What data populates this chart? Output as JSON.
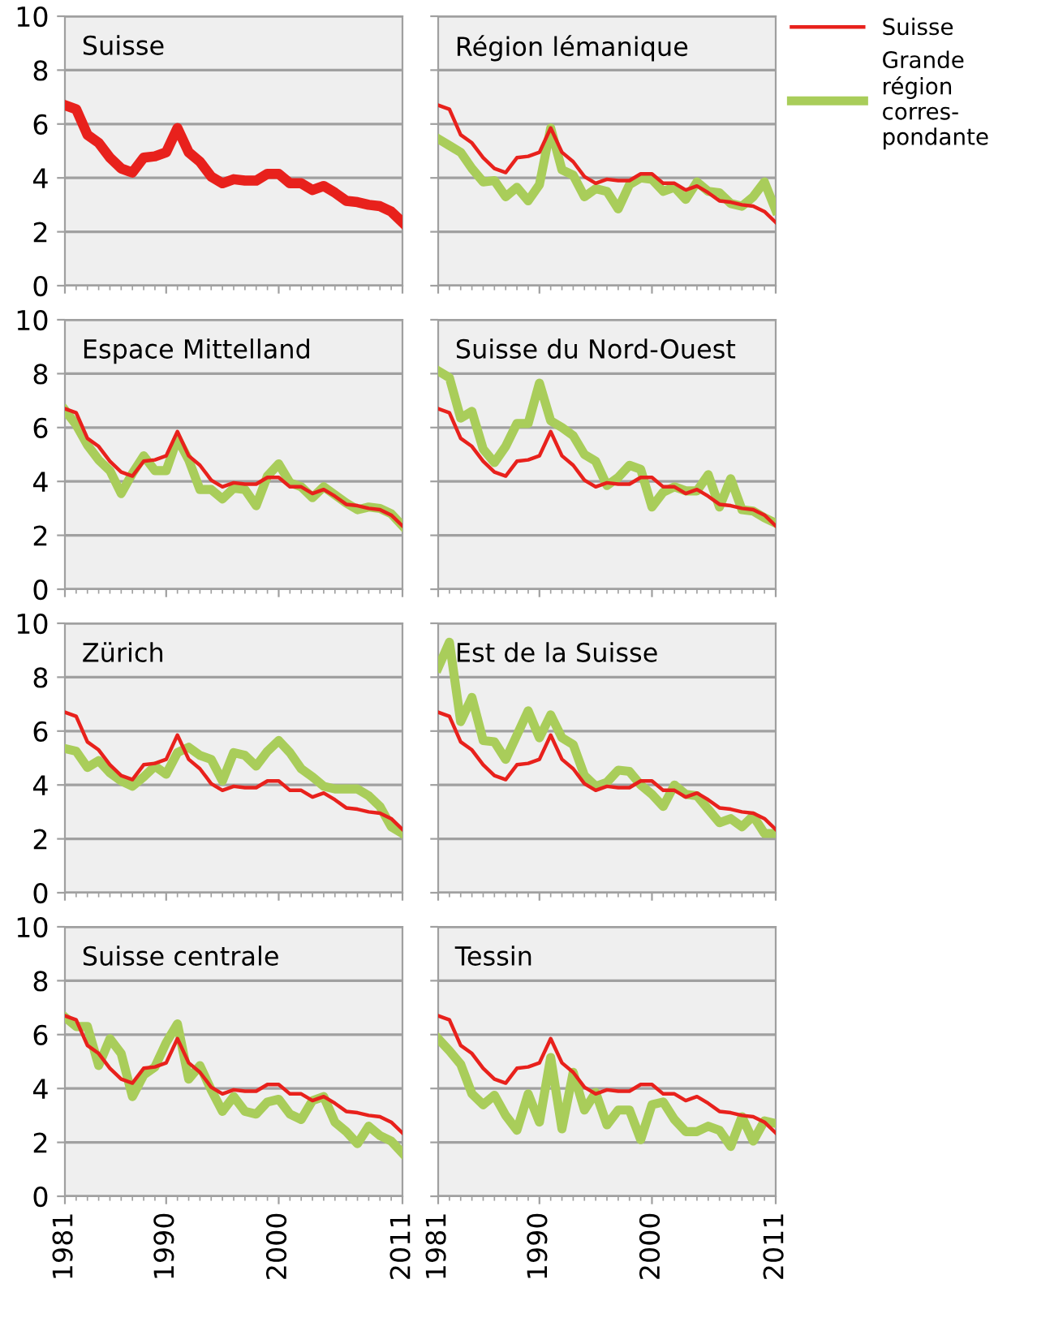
{
  "chart_data": [
    {
      "type": "line",
      "title": "Suisse",
      "xlim": [
        1981,
        2011
      ],
      "xticks": [
        1981,
        1990,
        2000,
        2011
      ],
      "ylim": [
        0,
        10
      ],
      "yticks": [
        0,
        2,
        4,
        6,
        8,
        10
      ],
      "grid": "y",
      "tick_labels": "y",
      "x": [
        1981,
        1982,
        1983,
        1984,
        1985,
        1986,
        1987,
        1988,
        1989,
        1990,
        1991,
        1992,
        1993,
        1994,
        1995,
        1996,
        1997,
        1998,
        1999,
        2000,
        2001,
        2002,
        2003,
        2004,
        2005,
        2006,
        2007,
        2008,
        2009,
        2010,
        2011
      ],
      "series": [
        {
          "color": "#e8211c",
          "values": [
            6.7,
            6.55,
            5.6,
            5.3,
            4.75,
            4.35,
            4.2,
            4.75,
            4.8,
            4.95,
            5.85,
            4.95,
            4.6,
            4.05,
            3.8,
            3.95,
            3.9,
            3.9,
            4.15,
            4.15,
            3.8,
            3.8,
            3.55,
            3.7,
            3.45,
            3.15,
            3.1,
            3.0,
            2.95,
            2.75,
            2.35
          ]
        }
      ]
    },
    {
      "type": "line",
      "title": "Région lémanique",
      "xlim": [
        1981,
        2011
      ],
      "xticks": [
        1981,
        1990,
        2000,
        2011
      ],
      "ylim": [
        0,
        10
      ],
      "yticks": [
        0,
        2,
        4,
        6,
        8,
        10
      ],
      "grid": "y",
      "tick_labels": false,
      "legend": "right",
      "x": [
        1981,
        1982,
        1983,
        1984,
        1985,
        1986,
        1987,
        1988,
        1989,
        1990,
        1991,
        1992,
        1993,
        1994,
        1995,
        1996,
        1997,
        1998,
        1999,
        2000,
        2001,
        2002,
        2003,
        2004,
        2005,
        2006,
        2007,
        2008,
        2009,
        2010,
        2011
      ],
      "series": [
        {
          "name": "Suisse",
          "color": "#e8211c",
          "values": [
            6.7,
            6.55,
            5.6,
            5.3,
            4.75,
            4.35,
            4.2,
            4.75,
            4.8,
            4.95,
            5.85,
            4.95,
            4.6,
            4.05,
            3.8,
            3.95,
            3.9,
            3.9,
            4.15,
            4.15,
            3.8,
            3.8,
            3.55,
            3.7,
            3.45,
            3.15,
            3.1,
            3.0,
            2.95,
            2.75,
            2.35
          ]
        },
        {
          "name": "Grande\nrégion\ncorres-\npondante",
          "color": "#a9cd5a",
          "values": [
            5.45,
            5.2,
            4.95,
            4.35,
            3.85,
            3.9,
            3.3,
            3.65,
            3.15,
            3.75,
            5.85,
            4.3,
            4.1,
            3.3,
            3.6,
            3.5,
            2.85,
            3.75,
            4.0,
            3.95,
            3.5,
            3.65,
            3.2,
            3.85,
            3.5,
            3.45,
            3.05,
            2.95,
            3.3,
            3.85,
            2.8
          ]
        }
      ]
    },
    {
      "type": "line",
      "title": "Espace Mittelland",
      "xlim": [
        1981,
        2011
      ],
      "xticks": [
        1981,
        1990,
        2000,
        2011
      ],
      "ylim": [
        0,
        10
      ],
      "yticks": [
        0,
        2,
        4,
        6,
        8,
        10
      ],
      "grid": "y",
      "tick_labels": "y",
      "x": [
        1981,
        1982,
        1983,
        1984,
        1985,
        1986,
        1987,
        1988,
        1989,
        1990,
        1991,
        1992,
        1993,
        1994,
        1995,
        1996,
        1997,
        1998,
        1999,
        2000,
        2001,
        2002,
        2003,
        2004,
        2005,
        2006,
        2007,
        2008,
        2009,
        2010,
        2011
      ],
      "series": [
        {
          "color": "#e8211c",
          "values": [
            6.7,
            6.55,
            5.6,
            5.3,
            4.75,
            4.35,
            4.2,
            4.75,
            4.8,
            4.95,
            5.85,
            4.95,
            4.6,
            4.05,
            3.8,
            3.95,
            3.9,
            3.9,
            4.15,
            4.15,
            3.8,
            3.8,
            3.55,
            3.7,
            3.45,
            3.15,
            3.1,
            3.0,
            2.95,
            2.75,
            2.35
          ]
        },
        {
          "color": "#a9cd5a",
          "values": [
            6.65,
            6.1,
            5.35,
            4.8,
            4.4,
            3.55,
            4.3,
            4.95,
            4.4,
            4.4,
            5.6,
            4.8,
            3.7,
            3.7,
            3.35,
            3.75,
            3.7,
            3.1,
            4.2,
            4.65,
            3.95,
            3.8,
            3.4,
            3.8,
            3.5,
            3.2,
            2.95,
            3.05,
            3.0,
            2.8,
            2.35
          ]
        }
      ]
    },
    {
      "type": "line",
      "title": "Suisse du Nord-Ouest",
      "xlim": [
        1981,
        2011
      ],
      "xticks": [
        1981,
        1990,
        2000,
        2011
      ],
      "ylim": [
        0,
        10
      ],
      "yticks": [
        0,
        2,
        4,
        6,
        8,
        10
      ],
      "grid": "y",
      "tick_labels": false,
      "x": [
        1981,
        1982,
        1983,
        1984,
        1985,
        1986,
        1987,
        1988,
        1989,
        1990,
        1991,
        1992,
        1993,
        1994,
        1995,
        1996,
        1997,
        1998,
        1999,
        2000,
        2001,
        2002,
        2003,
        2004,
        2005,
        2006,
        2007,
        2008,
        2009,
        2010,
        2011
      ],
      "series": [
        {
          "color": "#e8211c",
          "values": [
            6.7,
            6.55,
            5.6,
            5.3,
            4.75,
            4.35,
            4.2,
            4.75,
            4.8,
            4.95,
            5.85,
            4.95,
            4.6,
            4.05,
            3.8,
            3.95,
            3.9,
            3.9,
            4.15,
            4.15,
            3.8,
            3.8,
            3.55,
            3.7,
            3.45,
            3.15,
            3.1,
            3.0,
            2.95,
            2.75,
            2.35
          ]
        },
        {
          "color": "#a9cd5a",
          "values": [
            8.1,
            7.85,
            6.35,
            6.6,
            5.2,
            4.7,
            5.3,
            6.15,
            6.15,
            7.65,
            6.25,
            6.0,
            5.7,
            5.0,
            4.75,
            3.85,
            4.15,
            4.6,
            4.45,
            3.05,
            3.6,
            3.8,
            3.65,
            3.65,
            4.25,
            3.05,
            4.1,
            2.95,
            2.9,
            2.65,
            2.45
          ]
        }
      ]
    },
    {
      "type": "line",
      "title": "Zürich",
      "xlim": [
        1981,
        2011
      ],
      "xticks": [
        1981,
        1990,
        2000,
        2011
      ],
      "ylim": [
        0,
        10
      ],
      "yticks": [
        0,
        2,
        4,
        6,
        8,
        10
      ],
      "grid": "y",
      "tick_labels": "y",
      "x": [
        1981,
        1982,
        1983,
        1984,
        1985,
        1986,
        1987,
        1988,
        1989,
        1990,
        1991,
        1992,
        1993,
        1994,
        1995,
        1996,
        1997,
        1998,
        1999,
        2000,
        2001,
        2002,
        2003,
        2004,
        2005,
        2006,
        2007,
        2008,
        2009,
        2010,
        2011
      ],
      "series": [
        {
          "color": "#e8211c",
          "values": [
            6.7,
            6.55,
            5.6,
            5.3,
            4.75,
            4.35,
            4.2,
            4.75,
            4.8,
            4.95,
            5.85,
            4.95,
            4.6,
            4.05,
            3.8,
            3.95,
            3.9,
            3.9,
            4.15,
            4.15,
            3.8,
            3.8,
            3.55,
            3.7,
            3.45,
            3.15,
            3.1,
            3.0,
            2.95,
            2.75,
            2.35
          ]
        },
        {
          "color": "#a9cd5a",
          "values": [
            5.35,
            5.25,
            4.65,
            4.9,
            4.45,
            4.15,
            3.95,
            4.3,
            4.7,
            4.4,
            5.2,
            5.4,
            5.1,
            4.95,
            4.15,
            5.2,
            5.1,
            4.7,
            5.25,
            5.65,
            5.2,
            4.6,
            4.3,
            3.95,
            3.85,
            3.85,
            3.85,
            3.6,
            3.2,
            2.45,
            2.2
          ]
        }
      ]
    },
    {
      "type": "line",
      "title": "Est de la Suisse",
      "xlim": [
        1981,
        2011
      ],
      "xticks": [
        1981,
        1990,
        2000,
        2011
      ],
      "ylim": [
        0,
        10
      ],
      "yticks": [
        0,
        2,
        4,
        6,
        8,
        10
      ],
      "grid": "y",
      "tick_labels": false,
      "x": [
        1981,
        1982,
        1983,
        1984,
        1985,
        1986,
        1987,
        1988,
        1989,
        1990,
        1991,
        1992,
        1993,
        1994,
        1995,
        1996,
        1997,
        1998,
        1999,
        2000,
        2001,
        2002,
        2003,
        2004,
        2005,
        2006,
        2007,
        2008,
        2009,
        2010,
        2011
      ],
      "series": [
        {
          "color": "#e8211c",
          "values": [
            6.7,
            6.55,
            5.6,
            5.3,
            4.75,
            4.35,
            4.2,
            4.75,
            4.8,
            4.95,
            5.85,
            4.95,
            4.6,
            4.05,
            3.8,
            3.95,
            3.9,
            3.9,
            4.15,
            4.15,
            3.8,
            3.8,
            3.55,
            3.7,
            3.45,
            3.15,
            3.1,
            3.0,
            2.95,
            2.75,
            2.35
          ]
        },
        {
          "color": "#a9cd5a",
          "values": [
            8.35,
            9.3,
            6.35,
            7.25,
            5.65,
            5.6,
            4.95,
            5.85,
            6.75,
            5.75,
            6.6,
            5.75,
            5.5,
            4.35,
            3.95,
            4.1,
            4.55,
            4.5,
            4.0,
            3.65,
            3.2,
            4.0,
            3.65,
            3.6,
            3.1,
            2.6,
            2.75,
            2.45,
            2.85,
            2.2,
            2.2
          ]
        }
      ]
    },
    {
      "type": "line",
      "title": "Suisse centrale",
      "xlim": [
        1981,
        2011
      ],
      "xticks": [
        1981,
        1990,
        2000,
        2011
      ],
      "ylim": [
        0,
        10
      ],
      "yticks": [
        0,
        2,
        4,
        6,
        8,
        10
      ],
      "grid": "y",
      "x": [
        1981,
        1982,
        1983,
        1984,
        1985,
        1986,
        1987,
        1988,
        1989,
        1990,
        1991,
        1992,
        1993,
        1994,
        1995,
        1996,
        1997,
        1998,
        1999,
        2000,
        2001,
        2002,
        2003,
        2004,
        2005,
        2006,
        2007,
        2008,
        2009,
        2010,
        2011
      ],
      "series": [
        {
          "color": "#e8211c",
          "values": [
            6.7,
            6.55,
            5.6,
            5.3,
            4.75,
            4.35,
            4.2,
            4.75,
            4.8,
            4.95,
            5.85,
            4.95,
            4.6,
            4.05,
            3.8,
            3.95,
            3.9,
            3.9,
            4.15,
            4.15,
            3.8,
            3.8,
            3.55,
            3.7,
            3.45,
            3.15,
            3.1,
            3.0,
            2.95,
            2.75,
            2.35
          ]
        },
        {
          "color": "#a9cd5a",
          "values": [
            6.65,
            6.3,
            6.3,
            4.85,
            5.85,
            5.3,
            3.7,
            4.5,
            4.8,
            5.7,
            6.4,
            4.35,
            4.85,
            3.95,
            3.15,
            3.7,
            3.15,
            3.05,
            3.5,
            3.6,
            3.05,
            2.85,
            3.55,
            3.7,
            2.75,
            2.4,
            1.95,
            2.6,
            2.25,
            2.05,
            1.6
          ]
        }
      ]
    },
    {
      "type": "line",
      "title": "Tessin",
      "xlim": [
        1981,
        2011
      ],
      "xticks": [
        1981,
        1990,
        2000,
        2011
      ],
      "ylim": [
        0,
        10
      ],
      "yticks": [
        0,
        2,
        4,
        6,
        8,
        10
      ],
      "grid": "y",
      "tick_labels": "x",
      "x": [
        1981,
        1982,
        1983,
        1984,
        1985,
        1986,
        1987,
        1988,
        1989,
        1990,
        1991,
        1992,
        1993,
        1994,
        1995,
        1996,
        1997,
        1998,
        1999,
        2000,
        2001,
        2002,
        2003,
        2004,
        2005,
        2006,
        2007,
        2008,
        2009,
        2010,
        2011
      ],
      "series": [
        {
          "color": "#e8211c",
          "values": [
            6.7,
            6.55,
            5.6,
            5.3,
            4.75,
            4.35,
            4.2,
            4.75,
            4.8,
            4.95,
            5.85,
            4.95,
            4.6,
            4.05,
            3.8,
            3.95,
            3.9,
            3.9,
            4.15,
            4.15,
            3.8,
            3.8,
            3.55,
            3.7,
            3.45,
            3.15,
            3.1,
            3.0,
            2.95,
            2.75,
            2.35
          ]
        },
        {
          "color": "#a9cd5a",
          "values": [
            5.85,
            5.4,
            4.9,
            3.8,
            3.4,
            3.75,
            3.0,
            2.45,
            3.8,
            2.75,
            5.15,
            2.5,
            4.6,
            3.2,
            3.85,
            2.65,
            3.2,
            3.2,
            2.1,
            3.4,
            3.5,
            2.85,
            2.4,
            2.4,
            2.6,
            2.45,
            1.85,
            2.95,
            2.05,
            2.8,
            2.7
          ]
        }
      ]
    }
  ]
}
